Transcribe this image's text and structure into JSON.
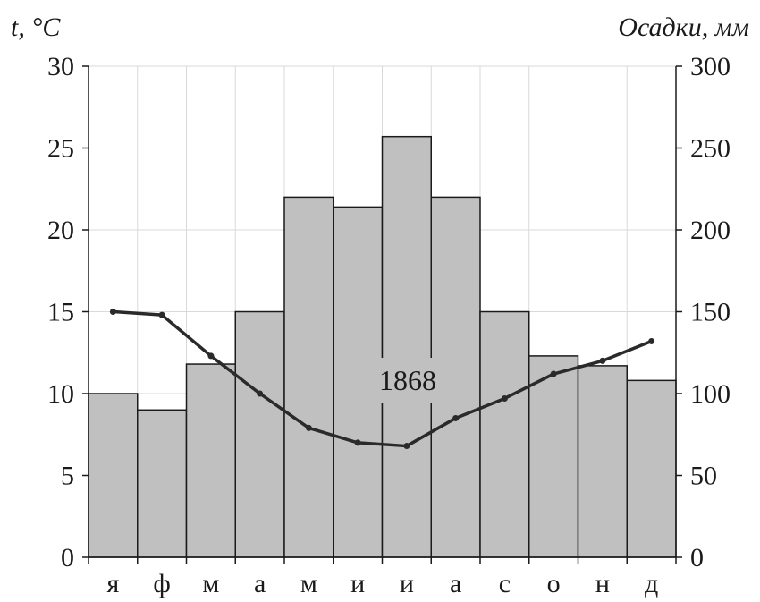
{
  "chart_data": {
    "type": "bar",
    "left_axis_title": "t, °C",
    "right_axis_title": "Осадки, мм",
    "annotation": "1868",
    "categories": [
      "я",
      "ф",
      "м",
      "а",
      "м",
      "и",
      "и",
      "а",
      "с",
      "о",
      "н",
      "д"
    ],
    "left_ticks": [
      "0",
      "5",
      "10",
      "15",
      "20",
      "25",
      "30"
    ],
    "right_ticks": [
      "0",
      "50",
      "100",
      "150",
      "200",
      "250",
      "300"
    ],
    "ylim_left": [
      0,
      30
    ],
    "ylim_right": [
      0,
      300
    ],
    "grid": true,
    "colors": {
      "bar_fill": "#c0c0c0",
      "bar_stroke": "#1a1a1a",
      "line": "#2a2a2a",
      "grid": "#d9d9d9"
    },
    "series": [
      {
        "type": "bar",
        "axis": "right",
        "values": [
          100,
          90,
          118,
          150,
          220,
          214,
          257,
          220,
          150,
          123,
          117,
          108
        ]
      },
      {
        "type": "line",
        "axis": "left",
        "values": [
          15.0,
          14.8,
          12.3,
          10.0,
          7.9,
          7.0,
          6.8,
          8.5,
          9.7,
          11.2,
          12.0,
          13.2
        ]
      }
    ]
  }
}
